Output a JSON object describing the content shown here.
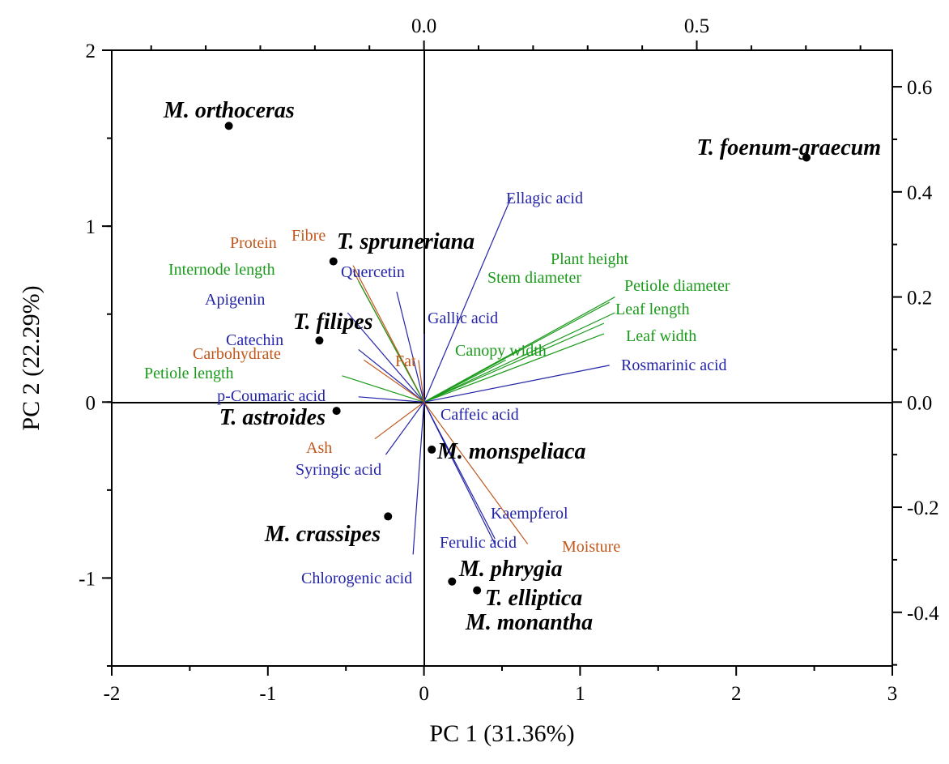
{
  "chart_data": {
    "type": "scatter",
    "subtype": "pca-biplot",
    "xlabel": "PC 1 (31.36%)",
    "ylabel": "PC 2 (22.29%)",
    "xlim": [
      -2,
      3
    ],
    "ylim": [
      -1.5,
      2
    ],
    "x_ticks": [
      -2,
      -1,
      0,
      1,
      2,
      3
    ],
    "y_ticks": [
      -1,
      0,
      1,
      2
    ],
    "top_ticks": [
      "0.0",
      "0.5"
    ],
    "top_lim": [
      -0.5723,
      0.8584
    ],
    "right_ticks": [
      "-0.4",
      "-0.2",
      "0.0",
      "0.2",
      "0.4",
      "0.6"
    ],
    "right_lim": [
      -0.5021,
      0.6695
    ],
    "grid": false,
    "colors": {
      "green": "#1a9a1a",
      "blue": "#2424a8",
      "orange": "#c0581c"
    },
    "scores": [
      {
        "name": "M. orthoceras",
        "x": -1.25,
        "y": 1.57
      },
      {
        "name": "T. foenum-graecum",
        "x": 2.45,
        "y": 1.39
      },
      {
        "name": "T. spruneriana",
        "x": -0.58,
        "y": 0.8
      },
      {
        "name": "T. filipes",
        "x": -0.67,
        "y": 0.35
      },
      {
        "name": "T. astroides",
        "x": -0.56,
        "y": -0.05
      },
      {
        "name": "M. monspeliaca",
        "x": 0.05,
        "y": -0.27
      },
      {
        "name": "M. crassipes",
        "x": -0.23,
        "y": -0.65
      },
      {
        "name": "M. phrygia",
        "x": 0.18,
        "y": -1.02
      },
      {
        "name": "T. elliptica",
        "x": 0.34,
        "y": -1.07
      },
      {
        "name": "M. monantha",
        "x": null,
        "y": null
      }
    ],
    "loadings": [
      {
        "name": "Ellagic acid",
        "x": 0.16,
        "y": 0.39,
        "color": "blue"
      },
      {
        "name": "Plant height",
        "x": 0.35,
        "y": 0.2,
        "color": "green"
      },
      {
        "name": "Stem diameter",
        "x": 0.34,
        "y": 0.19,
        "color": "green"
      },
      {
        "name": "Petiole diameter",
        "x": 0.35,
        "y": 0.17,
        "color": "green"
      },
      {
        "name": "Leaf length",
        "x": 0.33,
        "y": 0.15,
        "color": "green"
      },
      {
        "name": "Leaf width",
        "x": 0.33,
        "y": 0.13,
        "color": "green"
      },
      {
        "name": "Canopy width",
        "x": 0.15,
        "y": 0.08,
        "color": "green"
      },
      {
        "name": "Rosmarinic acid",
        "x": 0.34,
        "y": 0.07,
        "color": "blue"
      },
      {
        "name": "Gallic acid",
        "x": 0.0,
        "y": 0.13,
        "color": "blue"
      },
      {
        "name": "Quercetin",
        "x": -0.05,
        "y": 0.21,
        "color": "blue"
      },
      {
        "name": "Fibre",
        "x": -0.13,
        "y": 0.26,
        "color": "orange"
      },
      {
        "name": "Protein",
        "x": -0.13,
        "y": 0.25,
        "color": "orange"
      },
      {
        "name": "Internode length",
        "x": -0.12,
        "y": 0.23,
        "color": "green"
      },
      {
        "name": "Apigenin",
        "x": -0.14,
        "y": 0.17,
        "color": "blue"
      },
      {
        "name": "Catechin",
        "x": -0.12,
        "y": 0.1,
        "color": "blue"
      },
      {
        "name": "Carbohydrate",
        "x": -0.11,
        "y": 0.08,
        "color": "orange"
      },
      {
        "name": "Petiole length",
        "x": -0.15,
        "y": 0.05,
        "color": "green"
      },
      {
        "name": "Fat",
        "x": -0.01,
        "y": 0.08,
        "color": "orange"
      },
      {
        "name": "p-Coumaric acid",
        "x": -0.12,
        "y": 0.01,
        "color": "blue"
      },
      {
        "name": "Caffeic acid",
        "x": 0.0,
        "y": -0.01,
        "color": "blue"
      },
      {
        "name": "Ash",
        "x": -0.09,
        "y": -0.07,
        "color": "orange"
      },
      {
        "name": "Syringic acid",
        "x": -0.07,
        "y": -0.1,
        "color": "blue"
      },
      {
        "name": "Chlorogenic acid",
        "x": -0.02,
        "y": -0.29,
        "color": "blue"
      },
      {
        "name": "Ferulic acid",
        "x": 0.13,
        "y": -0.26,
        "color": "blue"
      },
      {
        "name": "Kaempferol",
        "x": 0.13,
        "y": -0.27,
        "color": "blue"
      },
      {
        "name": "Moisture",
        "x": 0.19,
        "y": -0.27,
        "color": "orange"
      }
    ]
  }
}
